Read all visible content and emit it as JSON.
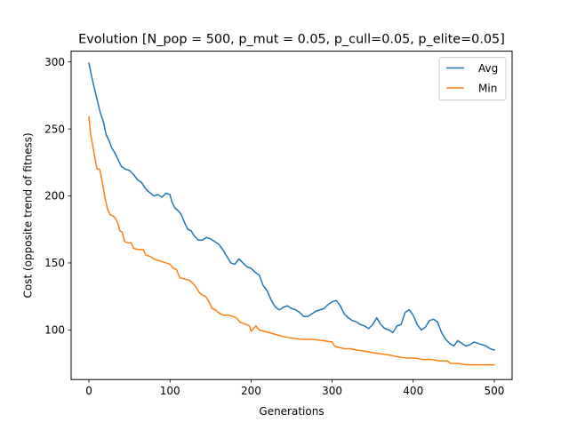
{
  "chart_data": {
    "type": "line",
    "title": "Evolution [N_pop = 500, p_mut = 0.05, p_cull=0.05, p_elite=0.05]",
    "xlabel": "Generations",
    "ylabel": "Cost (opposite trend of fitness)",
    "xlim": [
      -22,
      522
    ],
    "ylim": [
      63,
      308
    ],
    "xticks": [
      0,
      100,
      200,
      300,
      400,
      500
    ],
    "yticks": [
      100,
      150,
      200,
      250,
      300
    ],
    "grid": false,
    "legend": "top-right",
    "series": [
      {
        "name": "Avg",
        "color": "#1f77b4",
        "points": [
          [
            0,
            299
          ],
          [
            3,
            290
          ],
          [
            6,
            282
          ],
          [
            10,
            272
          ],
          [
            14,
            262
          ],
          [
            18,
            255
          ],
          [
            21,
            246
          ],
          [
            25,
            241
          ],
          [
            28,
            236
          ],
          [
            32,
            232
          ],
          [
            36,
            227
          ],
          [
            40,
            222
          ],
          [
            45,
            220
          ],
          [
            50,
            219
          ],
          [
            55,
            216
          ],
          [
            60,
            212
          ],
          [
            65,
            210
          ],
          [
            68,
            207
          ],
          [
            72,
            204
          ],
          [
            76,
            202
          ],
          [
            80,
            200
          ],
          [
            85,
            201
          ],
          [
            90,
            199
          ],
          [
            95,
            202
          ],
          [
            100,
            201
          ],
          [
            102,
            196
          ],
          [
            106,
            191
          ],
          [
            110,
            189
          ],
          [
            114,
            186
          ],
          [
            118,
            180
          ],
          [
            122,
            175
          ],
          [
            126,
            174
          ],
          [
            130,
            170
          ],
          [
            135,
            167
          ],
          [
            140,
            167
          ],
          [
            145,
            169
          ],
          [
            150,
            168
          ],
          [
            155,
            166
          ],
          [
            160,
            164
          ],
          [
            165,
            160
          ],
          [
            170,
            155
          ],
          [
            175,
            150
          ],
          [
            180,
            149
          ],
          [
            185,
            153
          ],
          [
            190,
            150
          ],
          [
            195,
            147
          ],
          [
            200,
            146
          ],
          [
            205,
            143
          ],
          [
            210,
            141
          ],
          [
            215,
            133
          ],
          [
            220,
            129
          ],
          [
            225,
            122
          ],
          [
            230,
            117
          ],
          [
            235,
            115
          ],
          [
            240,
            117
          ],
          [
            245,
            118
          ],
          [
            250,
            116
          ],
          [
            255,
            115
          ],
          [
            260,
            113
          ],
          [
            265,
            110
          ],
          [
            270,
            110
          ],
          [
            275,
            112
          ],
          [
            280,
            114
          ],
          [
            285,
            115
          ],
          [
            290,
            116
          ],
          [
            295,
            119
          ],
          [
            300,
            121
          ],
          [
            305,
            122
          ],
          [
            310,
            118
          ],
          [
            315,
            112
          ],
          [
            320,
            109
          ],
          [
            325,
            107
          ],
          [
            330,
            106
          ],
          [
            335,
            104
          ],
          [
            340,
            103
          ],
          [
            345,
            101
          ],
          [
            350,
            104
          ],
          [
            355,
            109
          ],
          [
            360,
            104
          ],
          [
            365,
            101
          ],
          [
            370,
            100
          ],
          [
            375,
            98
          ],
          [
            380,
            103
          ],
          [
            385,
            104
          ],
          [
            390,
            113
          ],
          [
            395,
            115
          ],
          [
            400,
            111
          ],
          [
            405,
            104
          ],
          [
            410,
            100
          ],
          [
            415,
            102
          ],
          [
            420,
            107
          ],
          [
            425,
            108
          ],
          [
            430,
            106
          ],
          [
            435,
            98
          ],
          [
            440,
            93
          ],
          [
            445,
            90
          ],
          [
            450,
            88
          ],
          [
            455,
            92
          ],
          [
            460,
            90
          ],
          [
            465,
            88
          ],
          [
            470,
            89
          ],
          [
            475,
            91
          ],
          [
            480,
            90
          ],
          [
            485,
            89
          ],
          [
            490,
            88
          ],
          [
            495,
            86
          ],
          [
            500,
            85
          ]
        ]
      },
      {
        "name": "Min",
        "color": "#ff7f0e",
        "points": [
          [
            0,
            259
          ],
          [
            2,
            246
          ],
          [
            4,
            240
          ],
          [
            6,
            233
          ],
          [
            8,
            226
          ],
          [
            10,
            220
          ],
          [
            13,
            220
          ],
          [
            15,
            215
          ],
          [
            18,
            205
          ],
          [
            20,
            198
          ],
          [
            23,
            190
          ],
          [
            26,
            186
          ],
          [
            30,
            185
          ],
          [
            33,
            183
          ],
          [
            36,
            179
          ],
          [
            38,
            174
          ],
          [
            41,
            173
          ],
          [
            44,
            166
          ],
          [
            48,
            165
          ],
          [
            52,
            165
          ],
          [
            55,
            161
          ],
          [
            60,
            160
          ],
          [
            67,
            160
          ],
          [
            70,
            156
          ],
          [
            75,
            155
          ],
          [
            80,
            153
          ],
          [
            85,
            152
          ],
          [
            90,
            151
          ],
          [
            95,
            150
          ],
          [
            100,
            149
          ],
          [
            104,
            146
          ],
          [
            108,
            145
          ],
          [
            112,
            139
          ],
          [
            118,
            138
          ],
          [
            124,
            137
          ],
          [
            128,
            135
          ],
          [
            132,
            132
          ],
          [
            136,
            128
          ],
          [
            140,
            126
          ],
          [
            144,
            125
          ],
          [
            148,
            121
          ],
          [
            152,
            116
          ],
          [
            156,
            115
          ],
          [
            162,
            112
          ],
          [
            166,
            111
          ],
          [
            172,
            111
          ],
          [
            178,
            110
          ],
          [
            182,
            109
          ],
          [
            186,
            106
          ],
          [
            190,
            105
          ],
          [
            194,
            104
          ],
          [
            198,
            103
          ],
          [
            200,
            99
          ],
          [
            206,
            103
          ],
          [
            210,
            100
          ],
          [
            216,
            99
          ],
          [
            222,
            98
          ],
          [
            228,
            97
          ],
          [
            234,
            96
          ],
          [
            240,
            95
          ],
          [
            250,
            94
          ],
          [
            262,
            93
          ],
          [
            275,
            93
          ],
          [
            290,
            92
          ],
          [
            300,
            91
          ],
          [
            303,
            88
          ],
          [
            308,
            87
          ],
          [
            315,
            86
          ],
          [
            322,
            86
          ],
          [
            330,
            85
          ],
          [
            342,
            84
          ],
          [
            350,
            83
          ],
          [
            362,
            82
          ],
          [
            373,
            81
          ],
          [
            380,
            80
          ],
          [
            392,
            79
          ],
          [
            402,
            79
          ],
          [
            412,
            78
          ],
          [
            422,
            78
          ],
          [
            432,
            77
          ],
          [
            442,
            77
          ],
          [
            446,
            75
          ],
          [
            456,
            75
          ],
          [
            466,
            74
          ],
          [
            500,
            74
          ]
        ]
      }
    ]
  }
}
